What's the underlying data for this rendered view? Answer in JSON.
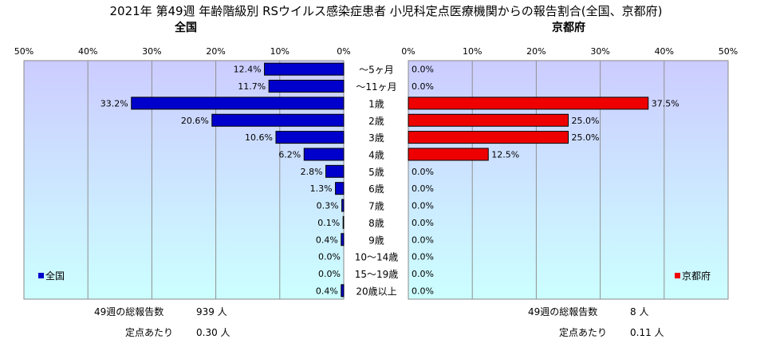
{
  "title": "2021年 第49週 年齢階級別 RSウイルス感染症患者 小児科定点医療機関からの報告割合(全国、京都府)",
  "colors": {
    "national": "#0000cc",
    "kyoto": "#ee0000",
    "bg_top": "#ccccff",
    "bg_bottom": "#ccffff"
  },
  "chart_data": [
    {
      "type": "bar",
      "orientation": "horizontal",
      "direction": "right-to-left",
      "title": "全国",
      "categories": [
        "〜5ヶ月",
        "〜11ヶ月",
        "1歳",
        "2歳",
        "3歳",
        "4歳",
        "5歳",
        "6歳",
        "7歳",
        "8歳",
        "9歳",
        "10〜14歳",
        "15〜19歳",
        "20歳以上"
      ],
      "series": [
        {
          "name": "全国",
          "values": [
            12.4,
            11.7,
            33.2,
            20.6,
            10.6,
            6.2,
            2.8,
            1.3,
            0.3,
            0.1,
            0.4,
            0.0,
            0.0,
            0.4
          ]
        }
      ],
      "data_labels": [
        "12.4%",
        "11.7%",
        "33.2%",
        "20.6%",
        "10.6%",
        "6.2%",
        "2.8%",
        "1.3%",
        "0.3%",
        "0.1%",
        "0.4%",
        "0.0%",
        "0.0%",
        "0.4%"
      ],
      "xlim": [
        0,
        50
      ],
      "xticks": [
        "50%",
        "40%",
        "30%",
        "20%",
        "10%",
        "0%"
      ],
      "legend": "bottom-left",
      "grid": true
    },
    {
      "type": "bar",
      "orientation": "horizontal",
      "direction": "left-to-right",
      "title": "京都府",
      "categories": [
        "〜5ヶ月",
        "〜11ヶ月",
        "1歳",
        "2歳",
        "3歳",
        "4歳",
        "5歳",
        "6歳",
        "7歳",
        "8歳",
        "9歳",
        "10〜14歳",
        "15〜19歳",
        "20歳以上"
      ],
      "series": [
        {
          "name": "京都府",
          "values": [
            0.0,
            0.0,
            37.5,
            25.0,
            25.0,
            12.5,
            0.0,
            0.0,
            0.0,
            0.0,
            0.0,
            0.0,
            0.0,
            0.0
          ]
        }
      ],
      "data_labels": [
        "0.0%",
        "0.0%",
        "37.5%",
        "25.0%",
        "25.0%",
        "12.5%",
        "0.0%",
        "0.0%",
        "0.0%",
        "0.0%",
        "0.0%",
        "0.0%",
        "0.0%",
        "0.0%"
      ],
      "xlim": [
        0,
        50
      ],
      "xticks": [
        "0%",
        "10%",
        "20%",
        "30%",
        "40%",
        "50%"
      ],
      "legend": "bottom-right",
      "grid": true
    }
  ],
  "footer": {
    "national": {
      "total_label": "49週の総報告数",
      "total_value": "939 人",
      "per_label": "定点あたり",
      "per_value": "0.30 人"
    },
    "kyoto": {
      "total_label": "49週の総報告数",
      "total_value": "8 人",
      "per_label": "定点あたり",
      "per_value": "0.11 人"
    }
  }
}
